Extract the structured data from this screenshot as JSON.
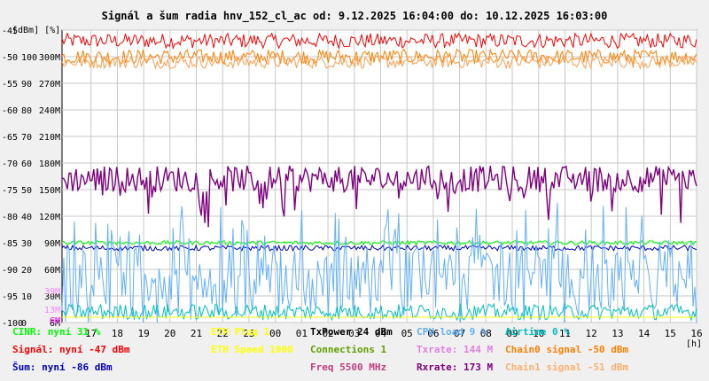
{
  "title": "Signál a šum radia hnv_152_cl_ac od: 9.12.2025 16:04:00 do: 10.12.2025 16:03:00",
  "units_label": "[dBm] [%]",
  "chart_data": {
    "type": "line",
    "title": "Signál a šum radia hnv_152_cl_ac od: 9.12.2025 16:04:00 do: 10.12.2025 16:03:00",
    "x_unit": "[h]",
    "x_ticks": [
      "17",
      "18",
      "19",
      "20",
      "21",
      "22",
      "23",
      "00",
      "01",
      "02",
      "03",
      "04",
      "05",
      "06",
      "07",
      "08",
      "09",
      "10",
      "11",
      "12",
      "13",
      "14",
      "15",
      "16"
    ],
    "y_ticks_dbm": [
      "-45",
      "-50",
      "-55",
      "-60",
      "-65",
      "-70",
      "-75",
      "-80",
      "-85",
      "-90",
      "-95",
      "-100"
    ],
    "y_ticks_pct": [
      "",
      "100",
      "90",
      "80",
      "70",
      "60",
      "50",
      "40",
      "30",
      "20",
      "10",
      "0"
    ],
    "y_ticks_rate": [
      "",
      "300M",
      "270M",
      "240M",
      "210M",
      "180M",
      "150M",
      "120M",
      "90M",
      "60M",
      "30M",
      "6M"
    ],
    "ylim_dbm": [
      -100,
      -45
    ],
    "grid": true,
    "inplot_labels": [
      {
        "text": "39M",
        "color": "#ff80ff",
        "y_dbm": -94
      },
      {
        "text": "13M",
        "color": "#ff80ff",
        "y_dbm": -97.5
      },
      {
        "text": "6M",
        "color": "#ff00ff",
        "y_dbm": -99.5
      }
    ],
    "series": [
      {
        "name": "Signál",
        "color": "#ff0000",
        "unit": "dBm",
        "base": -47,
        "noise": 1.4
      },
      {
        "name": "Chain0 signal",
        "color": "#ff8000",
        "unit": "dBm",
        "base": -50,
        "noise": 1.4
      },
      {
        "name": "Chain1 signal",
        "color": "#ffa050",
        "unit": "dBm",
        "base": -51,
        "noise": 1.2
      },
      {
        "name": "Rxrate",
        "color": "#800080",
        "unit": "Mbps",
        "base": -73,
        "noise": 2.5
      },
      {
        "name": "CINR",
        "color": "#00ff00",
        "unit": "%",
        "base": -85,
        "noise": 0.4
      },
      {
        "name": "Šum",
        "color": "#0000c0",
        "unit": "dBm",
        "base": -86,
        "noise": 0.5
      },
      {
        "name": "CPU load",
        "color": "#60b0ff",
        "unit": "%",
        "base": -91,
        "noise": 6
      },
      {
        "name": "Airtime",
        "color": "#00c0c0",
        "unit": "%",
        "base": -98,
        "noise": 1.5
      },
      {
        "name": "ETH Plug",
        "color": "#ffff00",
        "unit": "",
        "base": -99,
        "noise": 0
      }
    ]
  },
  "legend": [
    {
      "text": "CINR: nyní 31 %",
      "color": "#00ff00"
    },
    {
      "text": "Signál: nyní -47 dBm",
      "color": "#ff0000"
    },
    {
      "text": "Šum: nyní -86 dBm",
      "color": "#0000c0"
    },
    {
      "text": "ETH Plug 1",
      "color": "#ffff00"
    },
    {
      "text": "ETH Speed 1000",
      "color": "#ffff00"
    },
    {
      "text": "TxPower 24 dBm",
      "color": "#000000"
    },
    {
      "text": "Connections 1",
      "color": "#60a000"
    },
    {
      "text": "Freq 5500 MHz",
      "color": "#c04080"
    },
    {
      "text": "CPU load 9 %",
      "color": "#60b0ff"
    },
    {
      "text": "Txrate: 144 M",
      "color": "#e080e0"
    },
    {
      "text": "Rxrate: 173 M",
      "color": "#800080"
    },
    {
      "text": "Airtime 0 %",
      "color": "#00c0c0"
    },
    {
      "text": "Chain0 signal -50 dBm",
      "color": "#ff8000"
    },
    {
      "text": "Chain1 signal -51 dBm",
      "color": "#ffb070"
    }
  ]
}
